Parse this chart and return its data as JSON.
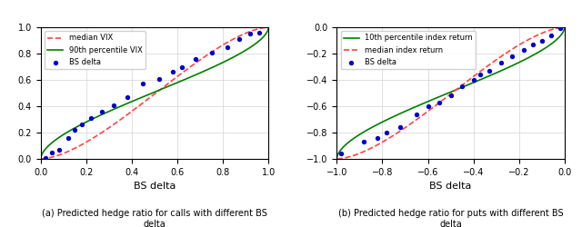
{
  "left": {
    "xlabel": "BS delta",
    "ylabel": "",
    "xlim": [
      0.0,
      1.0
    ],
    "ylim": [
      0.0,
      1.0
    ],
    "xticks": [
      0.0,
      0.2,
      0.4,
      0.6,
      0.8,
      1.0
    ],
    "yticks": [
      0.0,
      0.2,
      0.4,
      0.6,
      0.8,
      1.0
    ],
    "legend": [
      "median VIX",
      "90th percentile VIX",
      "BS delta"
    ],
    "line1_color": "#ff4444",
    "line1_style": "--",
    "line2_color": "#008000",
    "line2_style": "-",
    "dot_color": "#0000cc",
    "caption": "(a) Predicted hedge ratio for calls with different BS\ndelta"
  },
  "right": {
    "xlabel": "BS delta",
    "ylabel": "",
    "xlim": [
      -1.0,
      0.0
    ],
    "ylim": [
      -1.0,
      0.0
    ],
    "xticks": [
      -1.0,
      -0.8,
      -0.6,
      -0.4,
      -0.2,
      0.0
    ],
    "yticks": [
      -1.0,
      -0.8,
      -0.6,
      -0.4,
      -0.2,
      0.0
    ],
    "legend": [
      "10th percentile index return",
      "median index return",
      "BS delta"
    ],
    "line1_color": "#008000",
    "line1_style": "-",
    "line2_color": "#ff4444",
    "line2_style": "--",
    "dot_color": "#0000cc",
    "caption": "(b) Predicted hedge ratio for puts with different BS\ndelta"
  }
}
